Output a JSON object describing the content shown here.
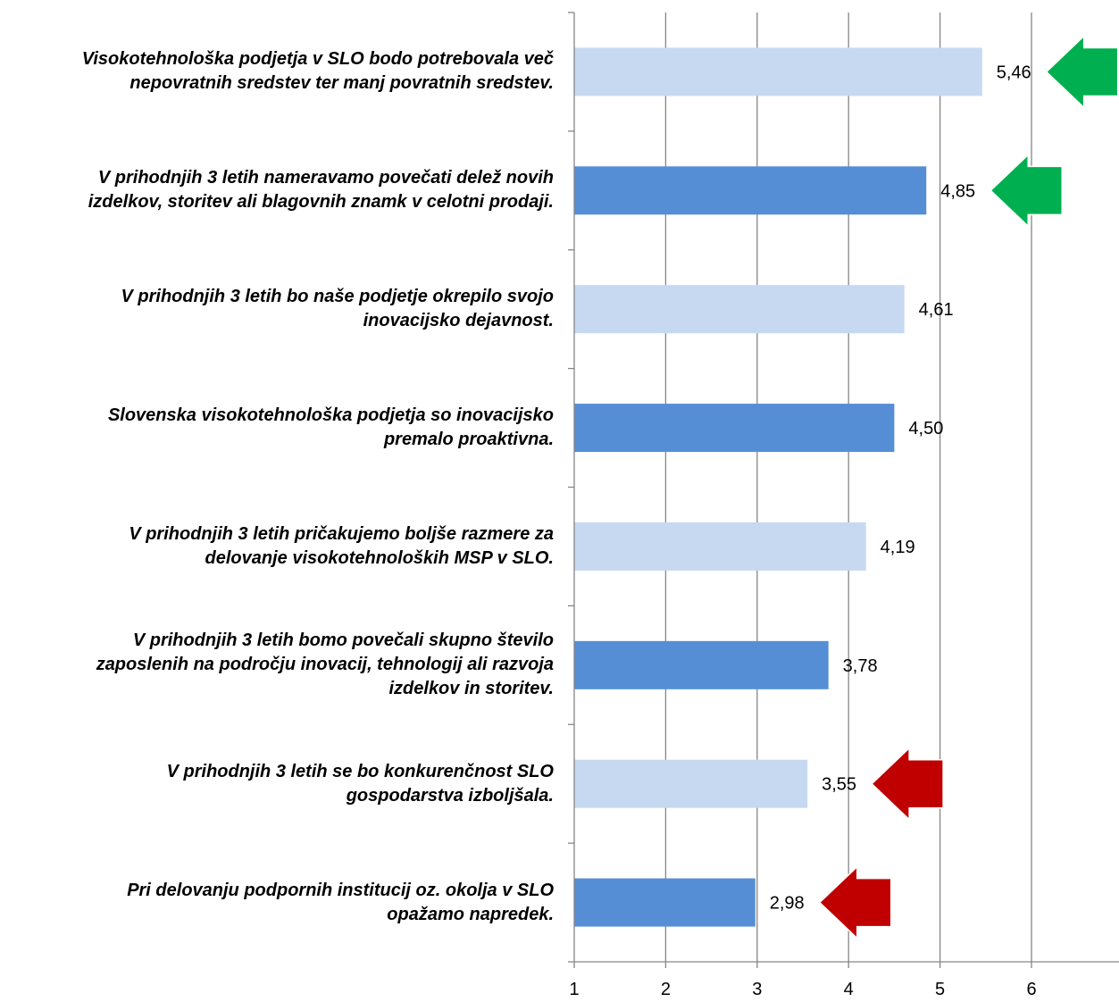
{
  "chart_data": {
    "type": "bar",
    "orientation": "horizontal",
    "categories": [
      "Visokotehnološka podjetja v SLO bodo potrebovala več nepovratnih sredstev ter manj povratnih sredstev.",
      "V prihodnjih 3 letih nameravamo povečati delež novih izdelkov, storitev ali blagovnih znamk v celotni prodaji.",
      "V prihodnjih 3 letih bo naše podjetje okrepilo svojo inovacijsko dejavnost.",
      "Slovenska visokotehnološka podjetja so inovacijsko premalo proaktivna.",
      "V prihodnjih 3 letih pričakujemo boljše razmere za delovanje visokotehnoloških MSP v SLO.",
      "V prihodnjih 3 letih bomo povečali skupno število zaposlenih  na področju inovacij, tehnologij ali razvoja izdelkov in storitev.",
      "V prihodnjih 3 letih se bo konkurenčnost SLO gospodarstva izboljšala.",
      "Pri delovanju podpornih institucij oz. okolja v SLO opažamo napredek."
    ],
    "label_lines": [
      [
        "Visokotehnološka podjetja v SLO bodo potrebovala več",
        "nepovratnih sredstev ter manj povratnih sredstev."
      ],
      [
        "V prihodnjih 3 letih nameravamo povečati delež novih",
        "izdelkov, storitev ali blagovnih znamk v celotni prodaji."
      ],
      [
        "V prihodnjih 3 letih bo naše podjetje okrepilo svojo",
        "inovacijsko dejavnost."
      ],
      [
        "Slovenska visokotehnološka podjetja so inovacijsko",
        "premalo proaktivna."
      ],
      [
        "V prihodnjih 3 letih pričakujemo boljše razmere za",
        "delovanje visokotehnoloških MSP v SLO."
      ],
      [
        "V prihodnjih 3 letih bomo povečali skupno število",
        "zaposlenih  na področju inovacij, tehnologij ali razvoja",
        "izdelkov in storitev."
      ],
      [
        "V prihodnjih 3 letih se bo konkurenčnost SLO",
        "gospodarstva izboljšala."
      ],
      [
        "Pri delovanju podpornih institucij oz. okolja v SLO",
        "opažamo napredek."
      ]
    ],
    "values": [
      5.46,
      4.85,
      4.61,
      4.5,
      4.19,
      3.78,
      3.55,
      2.98
    ],
    "value_labels": [
      "5,46",
      "4,85",
      "4,61",
      "4,50",
      "4,19",
      "3,78",
      "3,55",
      "2,98"
    ],
    "bar_colors": [
      "#c6d9f1",
      "#558ed5",
      "#c6d9f1",
      "#558ed5",
      "#c6d9f1",
      "#558ed5",
      "#c6d9f1",
      "#558ed5"
    ],
    "markers": [
      {
        "index": 0,
        "type": "arrow-left",
        "color": "#00b050"
      },
      {
        "index": 1,
        "type": "arrow-left",
        "color": "#00b050"
      },
      {
        "index": 6,
        "type": "arrow-left",
        "color": "#c00000"
      },
      {
        "index": 7,
        "type": "arrow-left",
        "color": "#c00000"
      }
    ],
    "xlim": [
      1,
      7
    ],
    "x_ticks": [
      1,
      2,
      3,
      4,
      5,
      6
    ],
    "x_tick_labels": [
      "1",
      "2",
      "3",
      "4",
      "5",
      "6"
    ],
    "grid": true,
    "grid_color": "#868686",
    "title": "",
    "xlabel": "",
    "ylabel": ""
  }
}
